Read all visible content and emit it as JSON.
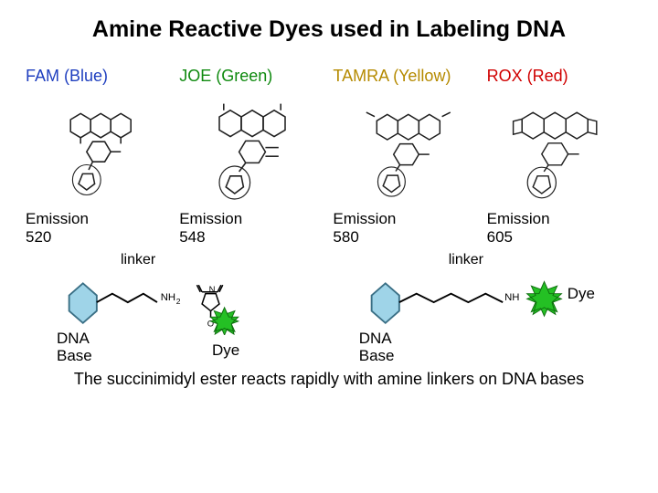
{
  "title": "Amine Reactive Dyes used in Labeling DNA",
  "dyes": [
    {
      "name": "FAM (Blue)",
      "color": "#1f3fbf",
      "emission": "Emission\n520"
    },
    {
      "name": "JOE (Green)",
      "color": "#0f8a0f",
      "emission": "Emission\n548"
    },
    {
      "name": "TAMRA (Yellow)",
      "color": "#b58a00",
      "emission": "Emission\n580"
    },
    {
      "name": "ROX (Red)",
      "color": "#d00000",
      "emission": "Emission\n605"
    }
  ],
  "linker_label": "linker",
  "dna_base_label": "DNA\nBase",
  "dye_label": "Dye",
  "footer": "The succinimidyl ester reacts rapidly with amine linkers on DNA bases",
  "colors": {
    "hex_fill": "#9fd4e8",
    "hex_stroke": "#3a6f85",
    "line": "#000000",
    "star_fill": "#24c024",
    "star_stroke": "#0e6e0e",
    "ring": "#000000"
  },
  "structure_stroke": "#202020"
}
